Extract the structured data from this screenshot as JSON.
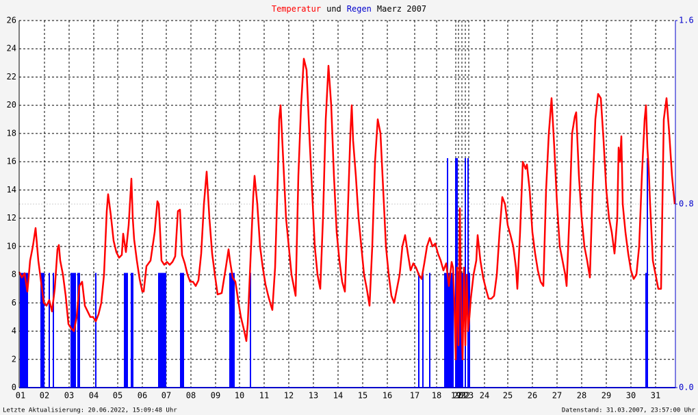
{
  "chart_data": {
    "type": "line",
    "title_parts": [
      {
        "text": "Temperatur",
        "color": "#ff0000"
      },
      {
        "text": "und",
        "color": "#000000"
      },
      {
        "text": "Regen",
        "color": "#0000cc"
      },
      {
        "text": "Maerz 2007",
        "color": "#000000"
      }
    ],
    "footer_left": "Letzte Aktualisierung: 20.06.2022, 15:09:48 Uhr",
    "footer_right": "Datenstand: 31.03.2007, 23:57:00 Uhr",
    "xlim": [
      28,
      987
    ],
    "xticks": [
      {
        "value": 30,
        "label": "01"
      },
      {
        "value": 65,
        "label": "02"
      },
      {
        "value": 101,
        "label": "03"
      },
      {
        "value": 137,
        "label": "04"
      },
      {
        "value": 172,
        "label": "05"
      },
      {
        "value": 208,
        "label": "06"
      },
      {
        "value": 243,
        "label": "07"
      },
      {
        "value": 279,
        "label": "08"
      },
      {
        "value": 315,
        "label": "09"
      },
      {
        "value": 350,
        "label": "10"
      },
      {
        "value": 386,
        "label": "11"
      },
      {
        "value": 422,
        "label": "12"
      },
      {
        "value": 458,
        "label": "13"
      },
      {
        "value": 494,
        "label": "14"
      },
      {
        "value": 530,
        "label": "15"
      },
      {
        "value": 566,
        "label": "16"
      },
      {
        "value": 606,
        "label": "17"
      },
      {
        "value": 638,
        "label": "18"
      },
      {
        "value": 666,
        "label": "19"
      },
      {
        "value": 670,
        "label": "20"
      },
      {
        "value": 675,
        "label": "21"
      },
      {
        "value": 680,
        "label": "22"
      },
      {
        "value": 685,
        "label": "23"
      },
      {
        "value": 708,
        "label": "24"
      },
      {
        "value": 742,
        "label": "25"
      },
      {
        "value": 778,
        "label": "26"
      },
      {
        "value": 814,
        "label": "27"
      },
      {
        "value": 850,
        "label": "28"
      },
      {
        "value": 886,
        "label": "29"
      },
      {
        "value": 922,
        "label": "30"
      },
      {
        "value": 958,
        "label": "31"
      }
    ],
    "ylim": [
      0,
      26
    ],
    "yticks": [
      0,
      2,
      4,
      6,
      8,
      10,
      12,
      14,
      16,
      18,
      20,
      22,
      24,
      26
    ],
    "y2lim": [
      0,
      1.6
    ],
    "y2ticks": [
      {
        "value": 0,
        "label": "0.0"
      },
      {
        "value": 0.8,
        "label": "0.8"
      },
      {
        "value": 1.6,
        "label": "1.6"
      }
    ],
    "grid": true,
    "series": [
      {
        "name": "Regen",
        "type": "bar",
        "axis": "y2",
        "color": "#0000ff",
        "x": [
          30,
          32,
          34,
          36,
          38,
          40,
          60,
          62,
          64,
          72,
          78,
          104,
          106,
          108,
          110,
          114,
          116,
          140,
          182,
          184,
          186,
          192,
          194,
          232,
          234,
          236,
          238,
          240,
          242,
          264,
          266,
          268,
          336,
          338,
          340,
          342,
          366,
          612,
          618,
          628,
          650,
          652,
          654,
          656,
          658,
          660,
          662,
          666,
          668,
          670,
          672,
          674,
          676,
          680,
          684,
          686,
          944,
          946
        ],
        "values": [
          0.5,
          0.5,
          0.5,
          0.5,
          0.5,
          0.5,
          0.5,
          0.5,
          0.5,
          0.5,
          0.5,
          0.5,
          0.5,
          0.5,
          0.5,
          0.5,
          0.5,
          0.5,
          0.5,
          0.5,
          0.5,
          0.5,
          0.5,
          0.5,
          0.5,
          0.5,
          0.5,
          0.5,
          0.5,
          0.5,
          0.5,
          0.5,
          0.5,
          0.5,
          0.5,
          0.5,
          0.5,
          0.5,
          0.5,
          0.5,
          0.5,
          0.5,
          1.0,
          0.5,
          0.5,
          0.5,
          0.5,
          1.0,
          1.0,
          0.5,
          0.5,
          0.5,
          0.5,
          1.0,
          1.0,
          0.5,
          0.5,
          1.0
        ]
      },
      {
        "name": "Temperatur",
        "type": "line",
        "color": "#ff0000",
        "x": [
          28,
          32,
          36,
          40,
          44,
          48,
          52,
          56,
          60,
          64,
          68,
          72,
          76,
          80,
          84,
          86,
          88,
          92,
          96,
          100,
          104,
          108,
          112,
          116,
          120,
          124,
          128,
          132,
          136,
          140,
          144,
          148,
          152,
          156,
          158,
          162,
          166,
          170,
          174,
          178,
          180,
          184,
          188,
          192,
          194,
          196,
          200,
          204,
          208,
          210,
          214,
          220,
          226,
          230,
          232,
          236,
          240,
          244,
          248,
          252,
          256,
          260,
          263,
          266,
          270,
          274,
          278,
          282,
          286,
          290,
          294,
          298,
          302,
          306,
          310,
          314,
          318,
          324,
          330,
          334,
          336,
          340,
          344,
          348,
          352,
          356,
          360,
          362,
          366,
          370,
          372,
          376,
          380,
          384,
          388,
          392,
          396,
          398,
          402,
          406,
          408,
          410,
          414,
          418,
          422,
          426,
          430,
          432,
          436,
          440,
          444,
          448,
          452,
          456,
          460,
          464,
          468,
          472,
          476,
          480,
          484,
          488,
          492,
          496,
          500,
          504,
          508,
          512,
          514,
          516,
          520,
          524,
          528,
          532,
          536,
          540,
          544,
          548,
          552,
          556,
          560,
          564,
          568,
          572,
          576,
          580,
          584,
          588,
          592,
          596,
          600,
          604,
          608,
          612,
          616,
          620,
          624,
          628,
          632,
          636,
          640,
          644,
          648,
          652,
          656,
          660,
          662,
          664,
          666,
          668,
          670,
          672,
          674,
          676,
          678,
          680,
          682,
          684,
          686,
          688,
          692,
          696,
          698,
          702,
          706,
          710,
          714,
          718,
          722,
          726,
          730,
          734,
          738,
          742,
          746,
          750,
          754,
          756,
          760,
          764,
          768,
          770,
          774,
          778,
          782,
          786,
          790,
          794,
          798,
          802,
          806,
          810,
          814,
          818,
          822,
          826,
          828,
          832,
          836,
          840,
          842,
          846,
          850,
          854,
          858,
          862,
          866,
          870,
          874,
          878,
          882,
          886,
          890,
          894,
          898,
          902,
          904,
          906,
          908,
          910,
          914,
          918,
          922,
          926,
          930,
          934,
          938,
          942,
          944,
          946,
          948,
          950,
          952,
          954,
          958,
          962,
          966,
          968,
          970,
          974,
          978,
          982,
          986
        ],
        "values": [
          8.2,
          7.8,
          8.1,
          6.8,
          9,
          10,
          11.3,
          9,
          7.5,
          6,
          5.8,
          6.2,
          5.4,
          7,
          9.8,
          10.1,
          9,
          8,
          6.5,
          4.5,
          4.2,
          4,
          5,
          7.2,
          7.5,
          5.8,
          5.4,
          5,
          5,
          4.7,
          5.2,
          6,
          8,
          12.5,
          13.7,
          12.2,
          10.4,
          9.6,
          9.2,
          9.4,
          10.9,
          9.6,
          11.5,
          14.8,
          12,
          10.5,
          9,
          7.7,
          6.8,
          6.8,
          8.6,
          9,
          11,
          13.2,
          13,
          9,
          8.7,
          8.9,
          8.7,
          8.9,
          9.3,
          12.5,
          12.6,
          9.4,
          8.8,
          8,
          7.5,
          7.5,
          7.2,
          7.6,
          9.5,
          13,
          15.3,
          12,
          9.5,
          8,
          6.6,
          6.7,
          8.5,
          9.8,
          9,
          7.8,
          7.5,
          6.2,
          5,
          4.2,
          3.3,
          4.5,
          9,
          13.5,
          15,
          13,
          10,
          8.5,
          7.3,
          6.5,
          5.8,
          5.5,
          8.5,
          15,
          19,
          20,
          16,
          12,
          10,
          8,
          7,
          6.5,
          15,
          20,
          23.3,
          22.5,
          18,
          14,
          10,
          8,
          7,
          12,
          19,
          22.8,
          20,
          15,
          11,
          9,
          7.5,
          6.8,
          12,
          18,
          20,
          17.5,
          15,
          12,
          10,
          8,
          7,
          5.8,
          10,
          16,
          19,
          18,
          14,
          10,
          8,
          6.5,
          6,
          7,
          8,
          10,
          10.8,
          9.5,
          8.3,
          8.8,
          8.5,
          8,
          7.7,
          8.8,
          10,
          10.6,
          10,
          10.2,
          9.5,
          9,
          8.3,
          8.8,
          7.2,
          8.9,
          8.5,
          6,
          2,
          8.5,
          3,
          12.7,
          5,
          2,
          8.5,
          3,
          8,
          4,
          5,
          6.3,
          8,
          9,
          10.8,
          9,
          7.8,
          7,
          6.3,
          6.3,
          6.5,
          8,
          11,
          13.5,
          13,
          11.5,
          10.8,
          10,
          8.5,
          7,
          11,
          16,
          15.5,
          15.8,
          14,
          11,
          9.5,
          8.3,
          7.5,
          7.2,
          14,
          18,
          20.5,
          17,
          13,
          10,
          9,
          8,
          7.2,
          12,
          18,
          19.2,
          19.5,
          15,
          12,
          10,
          9,
          7.8,
          14,
          19,
          20.8,
          20.5,
          17.5,
          14,
          12,
          11,
          9.5,
          12,
          17,
          16,
          17.8,
          13,
          11,
          9.5,
          8.3,
          7.7,
          8,
          10,
          15,
          19,
          20,
          17,
          15.5,
          13,
          11,
          9,
          8,
          7,
          7,
          13,
          19,
          20.5,
          18,
          15,
          13
        ]
      }
    ]
  }
}
